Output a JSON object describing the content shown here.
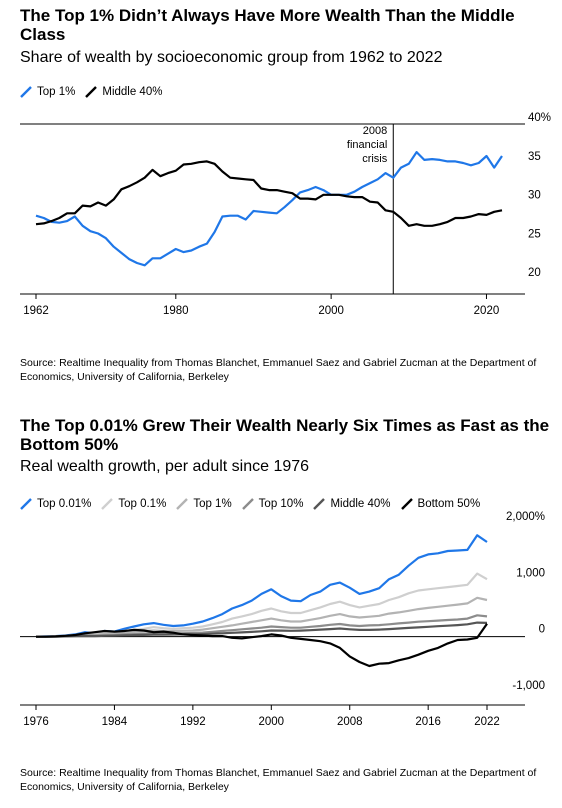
{
  "charts": [
    {
      "title": "The Top 1% Didn’t Always Have More Wealth Than the Middle Class",
      "subtitle": "Share of wealth by socioeconomic group from 1962 to 2022",
      "source": "Source: Realtime Inequality from Thomas Blanchet, Emmanuel Saez and Gabriel Zucman at the Department of Economics, University of California, Berkeley",
      "legend": [
        {
          "name": "Top 1%",
          "color": "#1f77e8"
        },
        {
          "name": "Middle 40%",
          "color": "#000000"
        }
      ],
      "y_tick_labels": [
        "40%",
        "35",
        "30",
        "25",
        "20"
      ],
      "x_tick_labels": [
        "1962",
        "1980",
        "2000",
        "2020"
      ],
      "annotation": [
        "2008",
        "financial",
        "crisis"
      ]
    },
    {
      "title": "The Top 0.01% Grew Their Wealth Nearly Six Times as Fast as the Bottom 50%",
      "subtitle": "Real wealth growth, per adult since 1976",
      "source": "Source: Realtime Inequality from Thomas Blanchet, Emmanuel Saez and Gabriel Zucman at the Department of Economics, University of California, Berkeley",
      "legend": [
        {
          "name": "Top 0.01%",
          "color": "#1f77e8"
        },
        {
          "name": "Top 0.1%",
          "color": "#cfcfcf"
        },
        {
          "name": "Top 1%",
          "color": "#b3b3b3"
        },
        {
          "name": "Top 10%",
          "color": "#8c8c8c"
        },
        {
          "name": "Middle 40%",
          "color": "#555555"
        },
        {
          "name": "Bottom 50%",
          "color": "#000000"
        }
      ],
      "y_tick_labels": [
        "2,000%",
        "1,000",
        "0",
        "-1,000"
      ],
      "x_tick_labels": [
        "1976",
        "1984",
        "1992",
        "2000",
        "2008",
        "2016",
        "2022"
      ]
    }
  ],
  "chart_data": [
    {
      "type": "line",
      "title": "The Top 1% Didn’t Always Have More Wealth Than the Middle Class",
      "xlim": [
        1962,
        2022
      ],
      "ylim": [
        20,
        40
      ],
      "x_ticks": [
        1962,
        1980,
        2000,
        2020
      ],
      "y_ticks": [
        40,
        35,
        30,
        25,
        20
      ],
      "grid": false,
      "legend_position": "top-left",
      "annotation": {
        "x": 2008,
        "text": "2008 financial crisis"
      },
      "series": [
        {
          "name": "Top 1%",
          "color": "#1f77e8",
          "x": [
            1962,
            1963,
            1964,
            1965,
            1966,
            1967,
            1968,
            1969,
            1970,
            1971,
            1972,
            1973,
            1974,
            1975,
            1976,
            1977,
            1978,
            1979,
            1980,
            1981,
            1982,
            1983,
            1984,
            1985,
            1986,
            1987,
            1988,
            1989,
            1990,
            1991,
            1992,
            1993,
            1994,
            1995,
            1996,
            1997,
            1998,
            1999,
            2000,
            2001,
            2002,
            2003,
            2004,
            2005,
            2006,
            2007,
            2008,
            2009,
            2010,
            2011,
            2012,
            2013,
            2014,
            2015,
            2016,
            2017,
            2018,
            2019,
            2020,
            2021,
            2022
          ],
          "values": [
            28.3,
            28.0,
            27.5,
            27.4,
            27.6,
            28.2,
            27.0,
            26.3,
            26.0,
            25.4,
            24.3,
            23.5,
            22.7,
            22.2,
            21.9,
            22.8,
            22.8,
            23.4,
            24.0,
            23.6,
            23.8,
            24.3,
            24.7,
            26.2,
            28.2,
            28.3,
            28.3,
            27.8,
            28.9,
            28.8,
            28.7,
            28.6,
            29.4,
            30.3,
            31.3,
            31.6,
            32.0,
            31.6,
            31.0,
            31.0,
            31.0,
            31.4,
            32.0,
            32.5,
            33.0,
            33.8,
            33.2,
            34.5,
            35.0,
            36.5,
            35.5,
            35.6,
            35.5,
            35.3,
            35.3,
            35.1,
            34.8,
            35.1,
            36.0,
            34.5,
            36.0
          ],
          "note": "values read off the chart; approximate"
        },
        {
          "name": "Middle 40%",
          "color": "#000000",
          "x": [
            1962,
            1963,
            1964,
            1965,
            1966,
            1967,
            1968,
            1969,
            1970,
            1971,
            1972,
            1973,
            1974,
            1975,
            1976,
            1977,
            1978,
            1979,
            1980,
            1981,
            1982,
            1983,
            1984,
            1985,
            1986,
            1987,
            1988,
            1989,
            1990,
            1991,
            1992,
            1993,
            1994,
            1995,
            1996,
            1997,
            1998,
            1999,
            2000,
            2001,
            2002,
            2003,
            2004,
            2005,
            2006,
            2007,
            2008,
            2009,
            2010,
            2011,
            2012,
            2013,
            2014,
            2015,
            2016,
            2017,
            2018,
            2019,
            2020,
            2021,
            2022
          ],
          "values": [
            27.2,
            27.3,
            27.6,
            28.0,
            28.6,
            28.6,
            29.6,
            29.5,
            30.0,
            29.6,
            30.4,
            31.7,
            32.1,
            32.6,
            33.2,
            34.2,
            33.4,
            33.8,
            34.1,
            34.9,
            35.0,
            35.2,
            35.3,
            35.0,
            34.0,
            33.2,
            33.1,
            33.0,
            32.9,
            31.8,
            31.6,
            31.6,
            31.4,
            31.2,
            30.5,
            30.5,
            30.4,
            31.0,
            31.0,
            31.0,
            30.8,
            30.7,
            30.7,
            30.1,
            30.0,
            29.0,
            28.8,
            28.0,
            27.0,
            27.2,
            27.0,
            27.0,
            27.2,
            27.5,
            28.0,
            28.0,
            28.2,
            28.5,
            28.4,
            28.8,
            29.0
          ]
        }
      ]
    },
    {
      "type": "line",
      "title": "The Top 0.01% Grew Their Wealth Nearly Six Times as Fast as the Bottom 50%",
      "xlim": [
        1976,
        2022
      ],
      "ylim": [
        -1000,
        2000
      ],
      "x_ticks": [
        1976,
        1984,
        1992,
        2000,
        2008,
        2016,
        2022
      ],
      "y_ticks": [
        2000,
        1000,
        0,
        -1000
      ],
      "grid": false,
      "legend_position": "top-left",
      "x": [
        1976,
        1977,
        1978,
        1979,
        1980,
        1981,
        1982,
        1983,
        1984,
        1985,
        1986,
        1987,
        1988,
        1989,
        1990,
        1991,
        1992,
        1993,
        1994,
        1995,
        1996,
        1997,
        1998,
        1999,
        2000,
        2001,
        2002,
        2003,
        2004,
        2005,
        2006,
        2007,
        2008,
        2009,
        2010,
        2011,
        2012,
        2013,
        2014,
        2015,
        2016,
        2017,
        2018,
        2019,
        2020,
        2021,
        2022
      ],
      "series": [
        {
          "name": "Top 0.01%",
          "color": "#1f77e8",
          "values": [
            0,
            5,
            10,
            20,
            40,
            80,
            60,
            100,
            90,
            140,
            180,
            220,
            240,
            210,
            190,
            200,
            230,
            270,
            330,
            400,
            500,
            560,
            640,
            760,
            840,
            720,
            640,
            630,
            740,
            800,
            920,
            960,
            870,
            760,
            800,
            860,
            1020,
            1100,
            1260,
            1400,
            1460,
            1480,
            1520,
            1530,
            1540,
            1800,
            1680
          ]
        },
        {
          "name": "Top 0.1%",
          "color": "#cfcfcf",
          "values": [
            0,
            3,
            8,
            15,
            30,
            50,
            45,
            70,
            70,
            100,
            120,
            140,
            170,
            150,
            140,
            150,
            160,
            180,
            220,
            260,
            320,
            360,
            400,
            460,
            500,
            450,
            420,
            420,
            470,
            520,
            580,
            620,
            560,
            520,
            550,
            580,
            650,
            700,
            770,
            820,
            840,
            860,
            880,
            900,
            920,
            1120,
            1020
          ]
        },
        {
          "name": "Top 1%",
          "color": "#b3b3b3",
          "values": [
            0,
            2,
            5,
            10,
            20,
            35,
            30,
            45,
            50,
            70,
            85,
            100,
            110,
            100,
            100,
            105,
            110,
            125,
            150,
            175,
            200,
            230,
            260,
            290,
            320,
            290,
            270,
            270,
            300,
            330,
            370,
            400,
            360,
            340,
            355,
            370,
            410,
            430,
            460,
            490,
            510,
            530,
            550,
            570,
            590,
            690,
            650
          ]
        },
        {
          "name": "Top 10%",
          "color": "#8c8c8c",
          "values": [
            0,
            1,
            3,
            6,
            12,
            20,
            18,
            25,
            28,
            38,
            45,
            55,
            60,
            58,
            60,
            62,
            65,
            72,
            85,
            100,
            115,
            130,
            145,
            160,
            180,
            170,
            160,
            160,
            175,
            190,
            210,
            225,
            200,
            190,
            200,
            205,
            220,
            235,
            250,
            265,
            275,
            285,
            295,
            305,
            320,
            380,
            360
          ]
        },
        {
          "name": "Middle 40%",
          "color": "#555555",
          "values": [
            0,
            0,
            2,
            4,
            8,
            12,
            10,
            15,
            18,
            22,
            28,
            32,
            36,
            36,
            38,
            40,
            42,
            46,
            52,
            60,
            68,
            76,
            85,
            95,
            110,
            108,
            105,
            108,
            115,
            125,
            135,
            145,
            130,
            120,
            120,
            125,
            135,
            145,
            155,
            165,
            175,
            185,
            195,
            205,
            220,
            250,
            245
          ]
        },
        {
          "name": "Bottom 50%",
          "color": "#000000",
          "values": [
            0,
            0,
            5,
            15,
            30,
            60,
            80,
            100,
            90,
            100,
            120,
            110,
            80,
            90,
            70,
            40,
            30,
            20,
            10,
            10,
            -20,
            -30,
            -10,
            10,
            40,
            20,
            -20,
            -40,
            -60,
            -80,
            -120,
            -200,
            -350,
            -450,
            -520,
            -480,
            -470,
            -420,
            -380,
            -320,
            -250,
            -200,
            -120,
            -60,
            -50,
            -20,
            230
          ]
        }
      ]
    }
  ]
}
